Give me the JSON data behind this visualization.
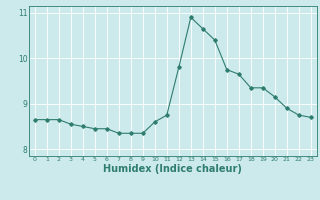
{
  "x": [
    0,
    1,
    2,
    3,
    4,
    5,
    6,
    7,
    8,
    9,
    10,
    11,
    12,
    13,
    14,
    15,
    16,
    17,
    18,
    19,
    20,
    21,
    22,
    23
  ],
  "y": [
    8.65,
    8.65,
    8.65,
    8.55,
    8.5,
    8.45,
    8.45,
    8.35,
    8.35,
    8.35,
    8.6,
    8.75,
    9.8,
    10.9,
    10.65,
    10.4,
    9.75,
    9.65,
    9.35,
    9.35,
    9.15,
    8.9,
    8.75,
    8.7
  ],
  "line_color": "#2e7d6e",
  "marker": "D",
  "marker_size": 1.8,
  "bg_color": "#cce9eb",
  "grid_color": "#ffffff",
  "xlabel": "Humidex (Indice chaleur)",
  "xlabel_fontsize": 7.0,
  "xlabel_color": "#2e7d6e",
  "tick_color": "#2e7d6e",
  "ylim": [
    7.85,
    11.15
  ],
  "yticks": [
    8,
    9,
    10,
    11
  ],
  "xticks": [
    0,
    1,
    2,
    3,
    4,
    5,
    6,
    7,
    8,
    9,
    10,
    11,
    12,
    13,
    14,
    15,
    16,
    17,
    18,
    19,
    20,
    21,
    22,
    23
  ]
}
